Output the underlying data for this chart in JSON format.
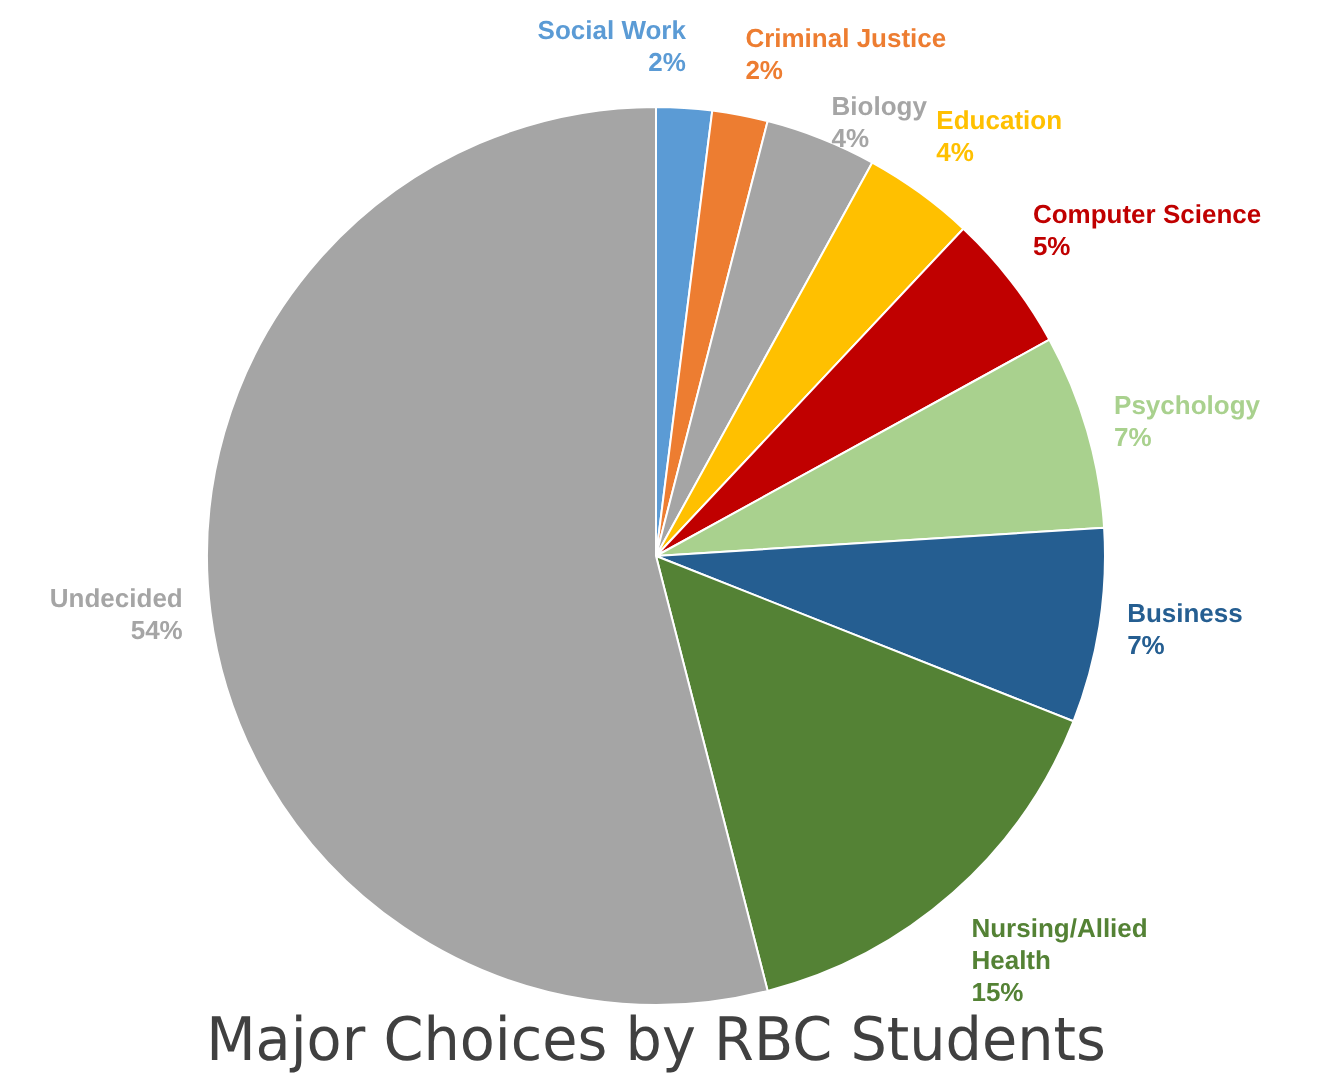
{
  "chart_data": {
    "type": "pie",
    "title": "Major Choices by RBC Students",
    "categories": [
      "Social Work",
      "Criminal Justice",
      "Biology",
      "Education",
      "Computer Science",
      "Psychology",
      "Business",
      "Nursing/Allied Health",
      "Undecided"
    ],
    "values": [
      2,
      2,
      4,
      4,
      5,
      7,
      7,
      15,
      54
    ],
    "value_labels": [
      "2%",
      "2%",
      "4%",
      "4%",
      "5%",
      "7%",
      "7%",
      "15%",
      "54%"
    ],
    "colors": [
      "#5b9bd5",
      "#ed7d31",
      "#a5a5a5",
      "#ffc000",
      "#c00000",
      "#a9d18e",
      "#255e91",
      "#548235",
      "#a5a5a5"
    ],
    "legend": false
  }
}
